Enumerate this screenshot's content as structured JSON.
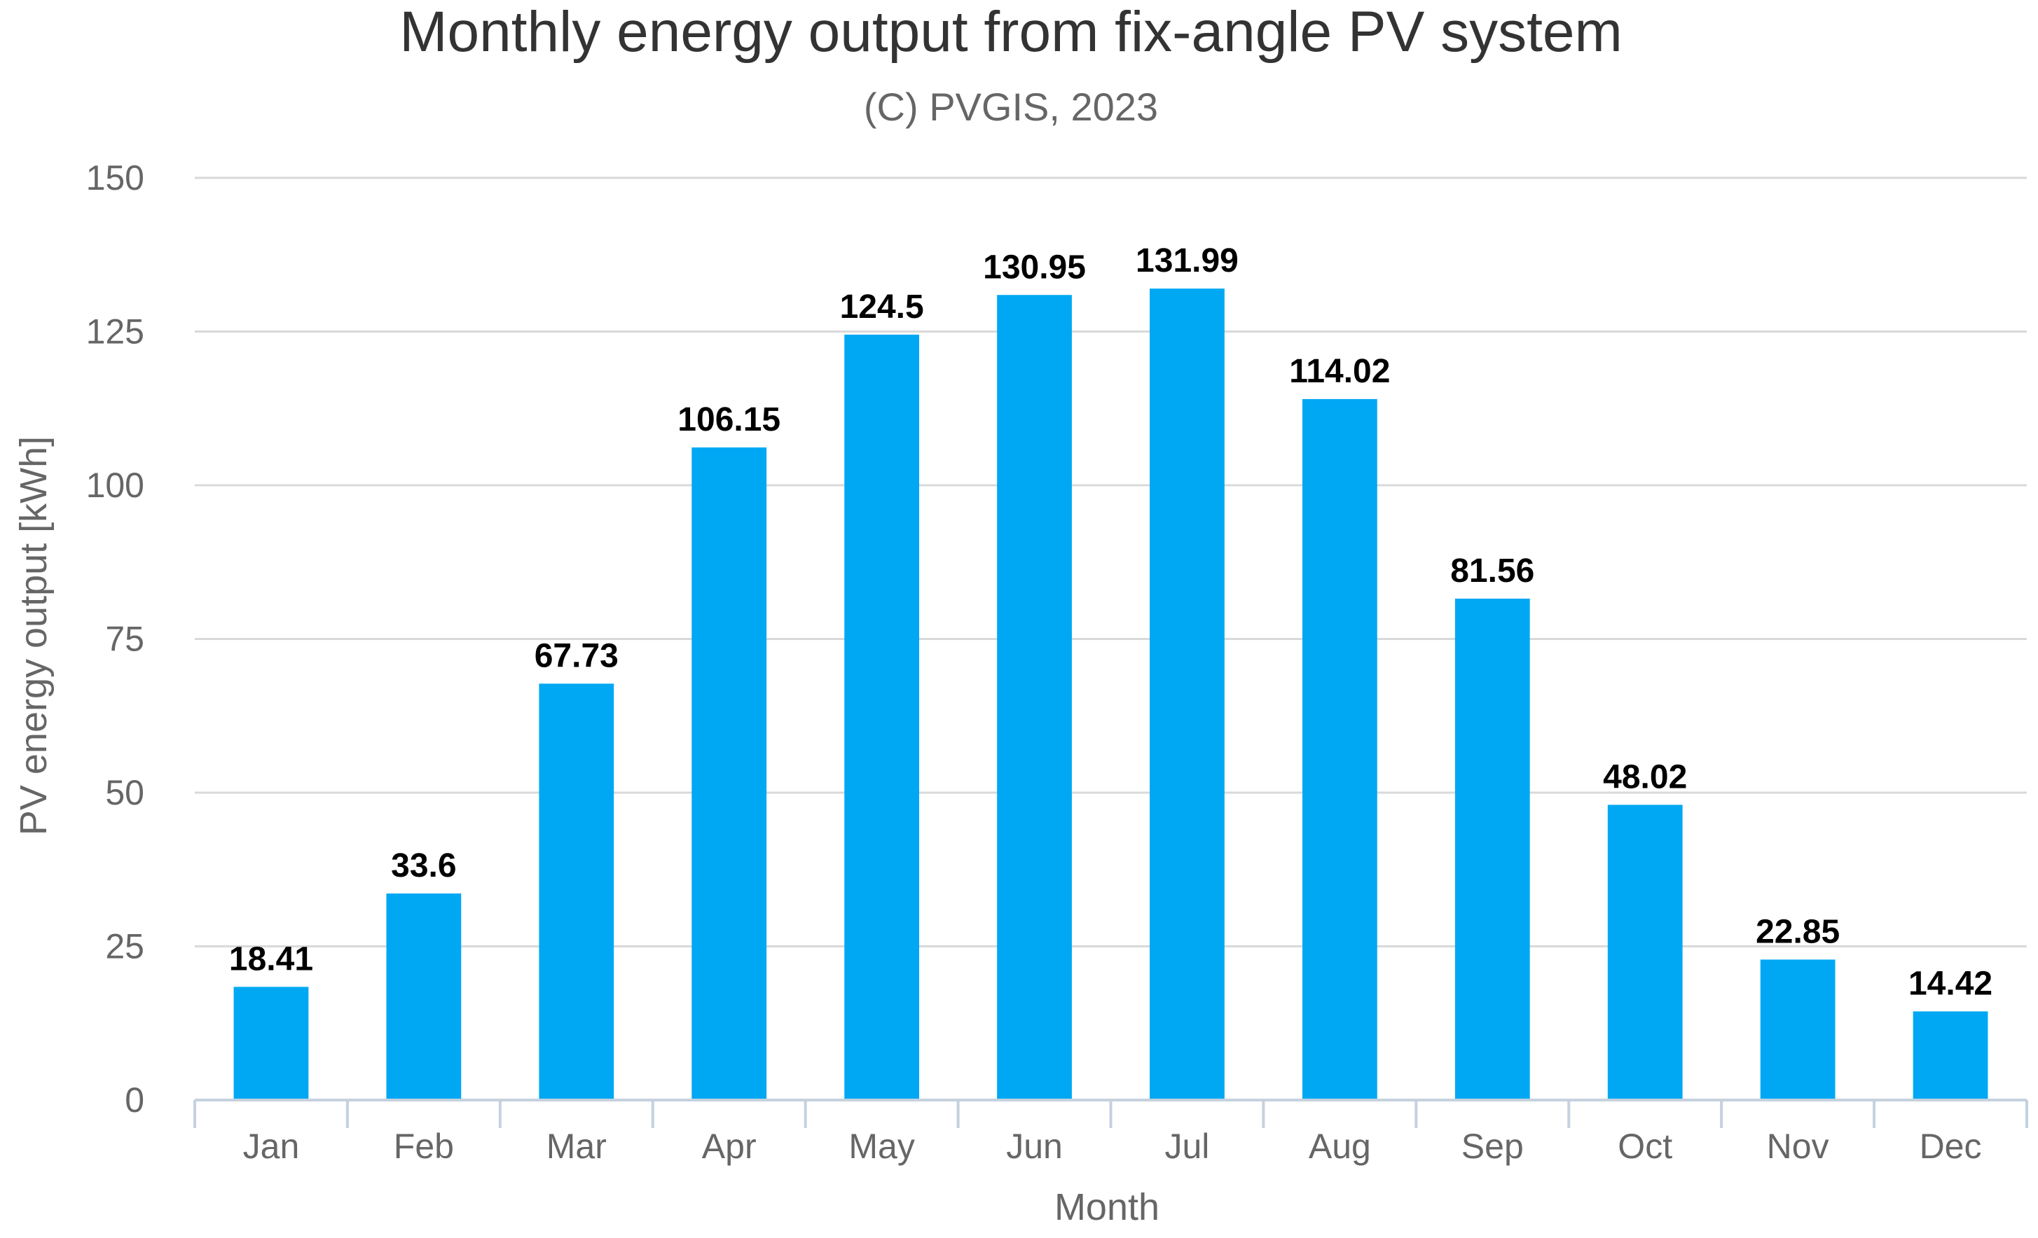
{
  "chart_data": {
    "type": "bar",
    "title": "Monthly energy output from fix-angle PV system",
    "subtitle": "(C) PVGIS, 2023",
    "xlabel": "Month",
    "ylabel": "PV energy output [kWh]",
    "categories": [
      "Jan",
      "Feb",
      "Mar",
      "Apr",
      "May",
      "Jun",
      "Jul",
      "Aug",
      "Sep",
      "Oct",
      "Nov",
      "Dec"
    ],
    "values": [
      18.41,
      33.6,
      67.73,
      106.15,
      124.5,
      130.95,
      131.99,
      114.02,
      81.56,
      48.02,
      22.85,
      14.42
    ],
    "data_labels": [
      "18.41",
      "33.6",
      "67.73",
      "106.15",
      "124.5",
      "130.95",
      "131.99",
      "114.02",
      "81.56",
      "48.02",
      "22.85",
      "14.42"
    ],
    "ylim": [
      0,
      150
    ],
    "yticks": [
      0,
      25,
      50,
      75,
      100,
      125,
      150
    ],
    "grid": true,
    "legend": "none",
    "bar_color": "#00a8f3"
  }
}
